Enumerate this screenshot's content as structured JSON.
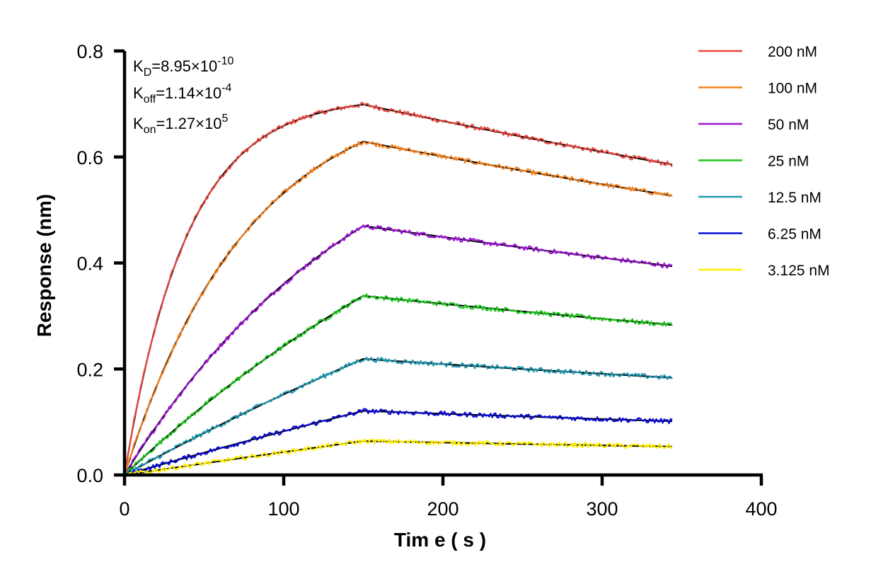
{
  "chart_data": {
    "type": "line",
    "xlabel": "Tim e ( s )",
    "ylabel": "Response (nm)",
    "xlim": [
      0,
      400
    ],
    "ylim": [
      0,
      0.8
    ],
    "xticks": [
      "0",
      "100",
      "200",
      "300",
      "400"
    ],
    "yticks": [
      "0.0",
      "0.2",
      "0.4",
      "0.6",
      "0.8"
    ],
    "grid": false,
    "legend_position": "right",
    "annotations": [
      {
        "base": "K",
        "sub": "D",
        "value": "=8.95×10",
        "exp": "-10"
      },
      {
        "base": "K",
        "sub": "off",
        "value": "=1.14×10",
        "exp": "-4"
      },
      {
        "base": "K",
        "sub": "on",
        "value": "=1.27×10",
        "exp": "5"
      }
    ],
    "kinetics": {
      "kon": 127000,
      "koff": 0.000114,
      "association_end_s": 150,
      "end_s": 344
    },
    "fit_color": "#000000",
    "series": [
      {
        "name": "200 nM",
        "concentration_nM": 200,
        "color": "#e8473f",
        "plateau": 0.699
      },
      {
        "name": "100 nM",
        "concentration_nM": 100,
        "color": "#f5821f",
        "plateau": 0.629
      },
      {
        "name": "50 nM",
        "concentration_nM": 50,
        "color": "#9b17d2",
        "plateau": 0.47
      },
      {
        "name": "25 nM",
        "concentration_nM": 25,
        "color": "#1ec41e",
        "plateau": 0.338
      },
      {
        "name": "12.5 nM",
        "concentration_nM": 12.5,
        "color": "#2299b0",
        "plateau": 0.219
      },
      {
        "name": "6.25 nM",
        "concentration_nM": 6.25,
        "color": "#0a0ad4",
        "plateau": 0.121
      },
      {
        "name": "3.125 nM",
        "concentration_nM": 3.125,
        "color": "#ffee00",
        "plateau": 0.064
      }
    ]
  }
}
